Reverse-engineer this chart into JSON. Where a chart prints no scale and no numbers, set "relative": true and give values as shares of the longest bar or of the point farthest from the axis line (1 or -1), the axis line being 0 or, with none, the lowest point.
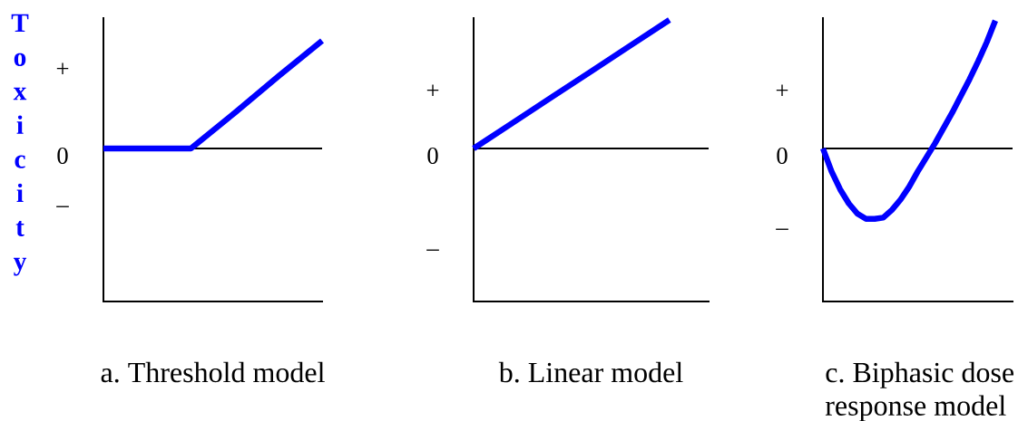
{
  "chart_data": [
    {
      "type": "line",
      "title": "a. Threshold model",
      "ylabel": "Toxicity",
      "relative": true,
      "categories": [
        null,
        null,
        null,
        null,
        null,
        null
      ],
      "series": [
        {
          "color": "#0000ff",
          "values": [
            0,
            0,
            0,
            0.33,
            0.67,
            1
          ]
        }
      ],
      "ref_lines": [
        {
          "axis": "y",
          "value": 0
        }
      ],
      "annotations": [
        "+",
        "0",
        "–"
      ]
    },
    {
      "type": "line",
      "title": "b. Linear model",
      "relative": true,
      "categories": [
        null,
        null,
        null,
        null,
        null,
        null,
        null
      ],
      "series": [
        {
          "color": "#0000ff",
          "values": [
            0,
            0.2,
            0.4,
            0.6,
            0.8,
            1,
            null
          ]
        }
      ],
      "ref_lines": [
        {
          "axis": "y",
          "value": 0
        }
      ],
      "annotations": [
        "+",
        "0",
        "–"
      ]
    },
    {
      "type": "line",
      "title": "c. Biphasic dose response model",
      "relative": true,
      "categories": [
        null,
        null,
        null,
        null,
        null,
        null,
        null,
        null,
        null,
        null,
        null,
        null,
        null,
        null,
        null,
        null,
        null,
        null,
        null,
        null,
        null,
        null,
        null
      ],
      "series": [
        {
          "color": "#0000ff",
          "values": [
            0,
            -0.18,
            -0.32,
            -0.43,
            -0.51,
            -0.55,
            -0.55,
            -0.54,
            -0.48,
            -0.4,
            -0.3,
            -0.18,
            -0.07,
            0.04,
            0.16,
            0.28,
            0.41,
            0.54,
            0.68,
            0.83,
            1,
            null,
            null
          ]
        }
      ],
      "ref_lines": [
        {
          "axis": "y",
          "value": 0
        }
      ],
      "annotations": [
        "+",
        "0",
        "–"
      ]
    }
  ]
}
